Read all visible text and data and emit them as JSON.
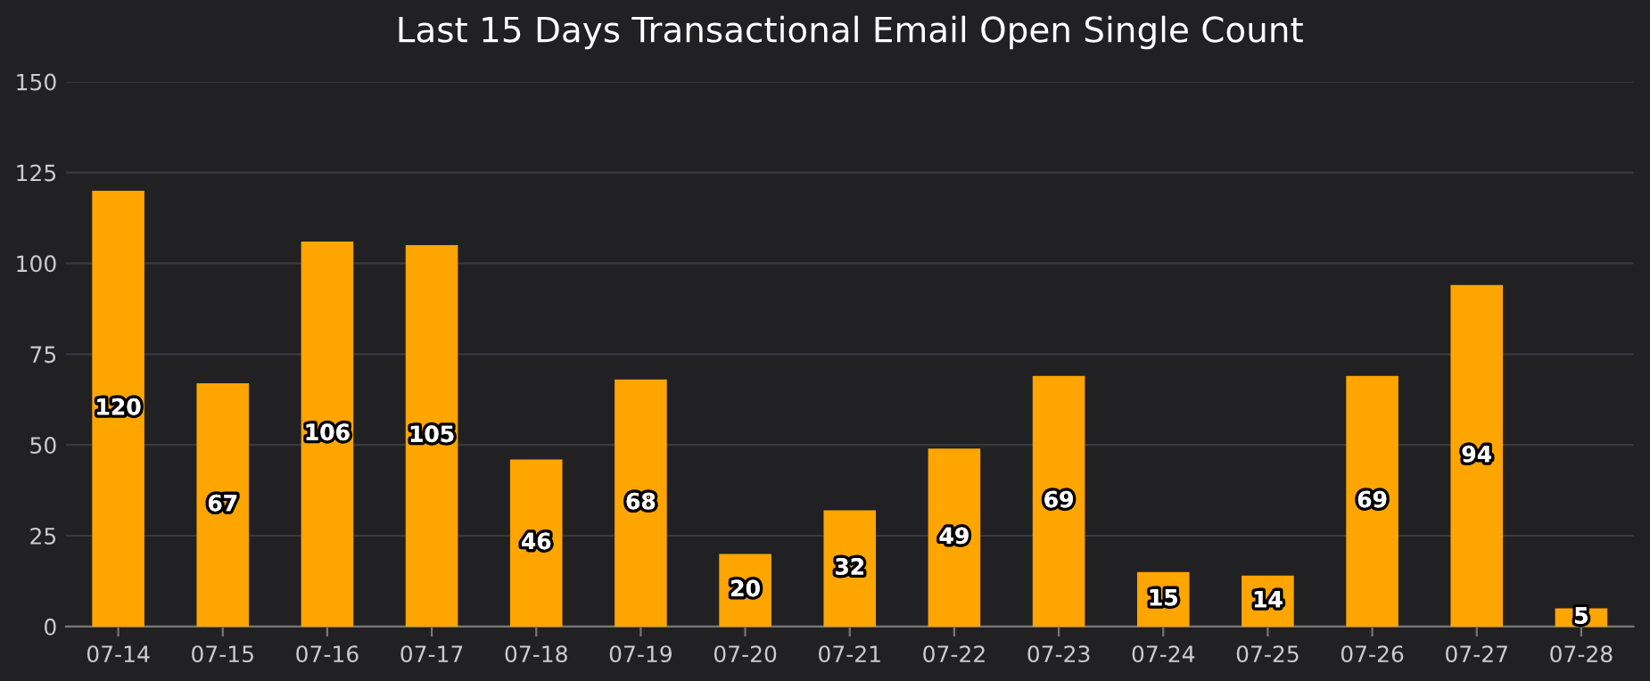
{
  "chart_data": {
    "type": "bar",
    "title": "Last 15 Days Transactional Email Open Single Count",
    "categories": [
      "07-14",
      "07-15",
      "07-16",
      "07-17",
      "07-18",
      "07-19",
      "07-20",
      "07-21",
      "07-22",
      "07-23",
      "07-24",
      "07-25",
      "07-26",
      "07-27",
      "07-28"
    ],
    "values": [
      120,
      67,
      106,
      105,
      46,
      68,
      20,
      32,
      49,
      69,
      15,
      14,
      69,
      94,
      5
    ],
    "color": "#ffa500",
    "ylim": [
      0,
      150
    ],
    "yticks": [
      0,
      25,
      50,
      75,
      100,
      125,
      150
    ],
    "grid": "y",
    "data_labels": true
  }
}
